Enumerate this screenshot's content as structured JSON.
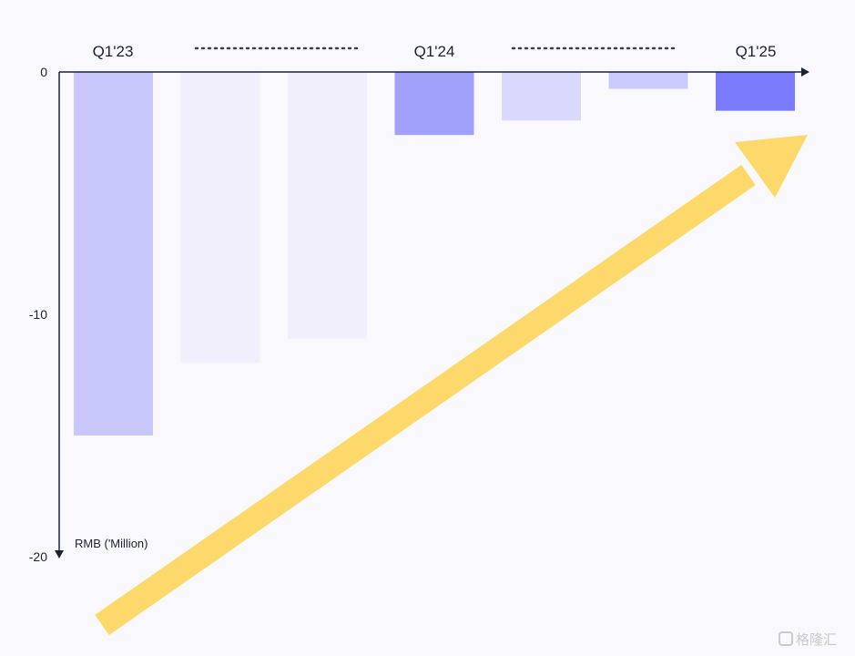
{
  "chart_data": {
    "type": "bar",
    "orientation": "negative-vertical",
    "ylabel": "RMB ('Million)",
    "ylim": [
      0,
      -20
    ],
    "y_ticks": [
      "0",
      "-10",
      "-20"
    ],
    "grid": false,
    "period_labels": [
      "Q1'23",
      "Q1'24",
      "Q1'25"
    ],
    "bars": [
      {
        "value": -15.0,
        "color": "#c8c8fd"
      },
      {
        "value": -12.0,
        "color": "#f0effb"
      },
      {
        "value": -11.0,
        "color": "#f0effb"
      },
      {
        "value": -2.6,
        "color": "#a1a1fb"
      },
      {
        "value": -2.0,
        "color": "#d9d9fc"
      },
      {
        "value": -0.7,
        "color": "#cbcbfd"
      },
      {
        "value": -1.6,
        "color": "#7b7bfd"
      }
    ],
    "trend_arrow": {
      "color": "#fcd96a",
      "direction": "up-right"
    }
  },
  "watermark": "格隆汇"
}
